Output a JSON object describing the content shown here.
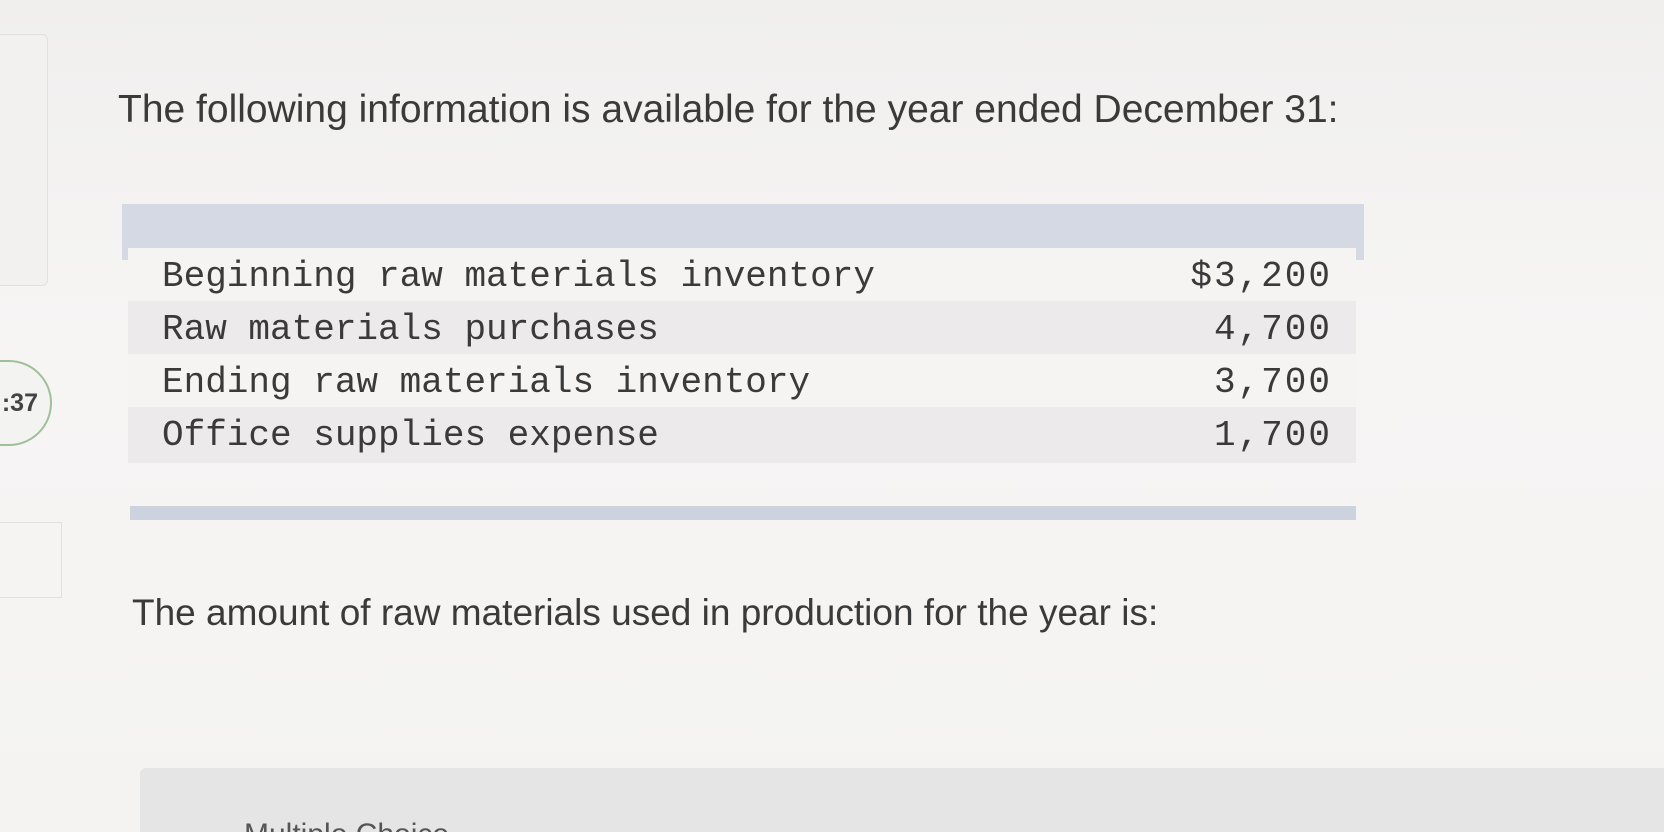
{
  "sidebar": {
    "question_number": ":37"
  },
  "intro_text": "The following information is available for the year ended December 31:",
  "table": {
    "rows": [
      {
        "label": "Beginning raw materials inventory",
        "value": "$3,200"
      },
      {
        "label": "Raw materials purchases",
        "value": "4,700"
      },
      {
        "label": "Ending raw materials inventory",
        "value": "3,700"
      },
      {
        "label": "Office supplies expense",
        "value": "1,700"
      }
    ]
  },
  "question_text": "The amount of raw materials used in production for the year is:",
  "answer_section": {
    "label": "Multiple Choice"
  }
}
